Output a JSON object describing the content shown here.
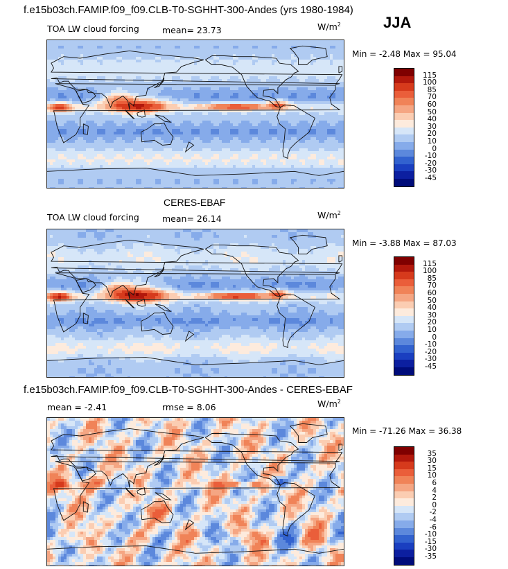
{
  "season": "JJA",
  "panels": [
    {
      "title": "f.e15b03ch.FAMIP.f09_f09.CLB-T0-SGHHT-300-Andes (yrs 1980-1984)",
      "left_label": "TOA LW cloud forcing",
      "stat1": "mean=  23.73",
      "stat2": "",
      "units": "W/m",
      "units_sup": "2",
      "minmax": "Min =  -2.48 Max =  95.04",
      "colorbar_labels": [
        "115",
        "100",
        "85",
        "70",
        "60",
        "50",
        "40",
        "30",
        "20",
        "10",
        "0",
        "-10",
        "-20",
        "-30",
        "-45"
      ],
      "colors": [
        "#7f0000",
        "#b2180c",
        "#d63a1c",
        "#ea5e3a",
        "#f08358",
        "#f5a683",
        "#fbcdb2",
        "#fdebdd",
        "#d6e6f8",
        "#b0cbf2",
        "#86abea",
        "#5c88dc",
        "#3262cf",
        "#1a3fc0",
        "#0c1fa0",
        "#000c7a"
      ]
    },
    {
      "title": "CERES-EBAF",
      "left_label": "TOA LW cloud forcing",
      "stat1": "mean=  26.14",
      "stat2": "",
      "units": "W/m",
      "units_sup": "2",
      "minmax": "Min =  -3.88 Max =  87.03",
      "colorbar_labels": [
        "115",
        "100",
        "85",
        "70",
        "60",
        "50",
        "40",
        "30",
        "20",
        "10",
        "0",
        "-10",
        "-20",
        "-30",
        "-45"
      ],
      "colors": [
        "#7f0000",
        "#b2180c",
        "#d63a1c",
        "#ea5e3a",
        "#f08358",
        "#f5a683",
        "#fbcdb2",
        "#fdebdd",
        "#d6e6f8",
        "#b0cbf2",
        "#86abea",
        "#5c88dc",
        "#3262cf",
        "#1a3fc0",
        "#0c1fa0",
        "#000c7a"
      ]
    },
    {
      "title": "f.e15b03ch.FAMIP.f09_f09.CLB-T0-SGHHT-300-Andes - CERES-EBAF",
      "left_label": "mean =  -2.41",
      "stat1": "rmse =   8.06",
      "stat2": "",
      "units": "W/m",
      "units_sup": "2",
      "minmax": "Min = -71.26 Max =  36.38",
      "colorbar_labels": [
        "35",
        "30",
        "15",
        "10",
        "6",
        "4",
        "2",
        "0",
        "-2",
        "-4",
        "-6",
        "-10",
        "-15",
        "-30",
        "-35"
      ],
      "colors": [
        "#7f0000",
        "#b2180c",
        "#d63a1c",
        "#ea5e3a",
        "#f08358",
        "#f5a683",
        "#fbcdb2",
        "#fdebdd",
        "#d6e6f8",
        "#b0cbf2",
        "#86abea",
        "#5c88dc",
        "#3262cf",
        "#1a3fc0",
        "#0c1fa0",
        "#000c7a"
      ]
    }
  ]
}
